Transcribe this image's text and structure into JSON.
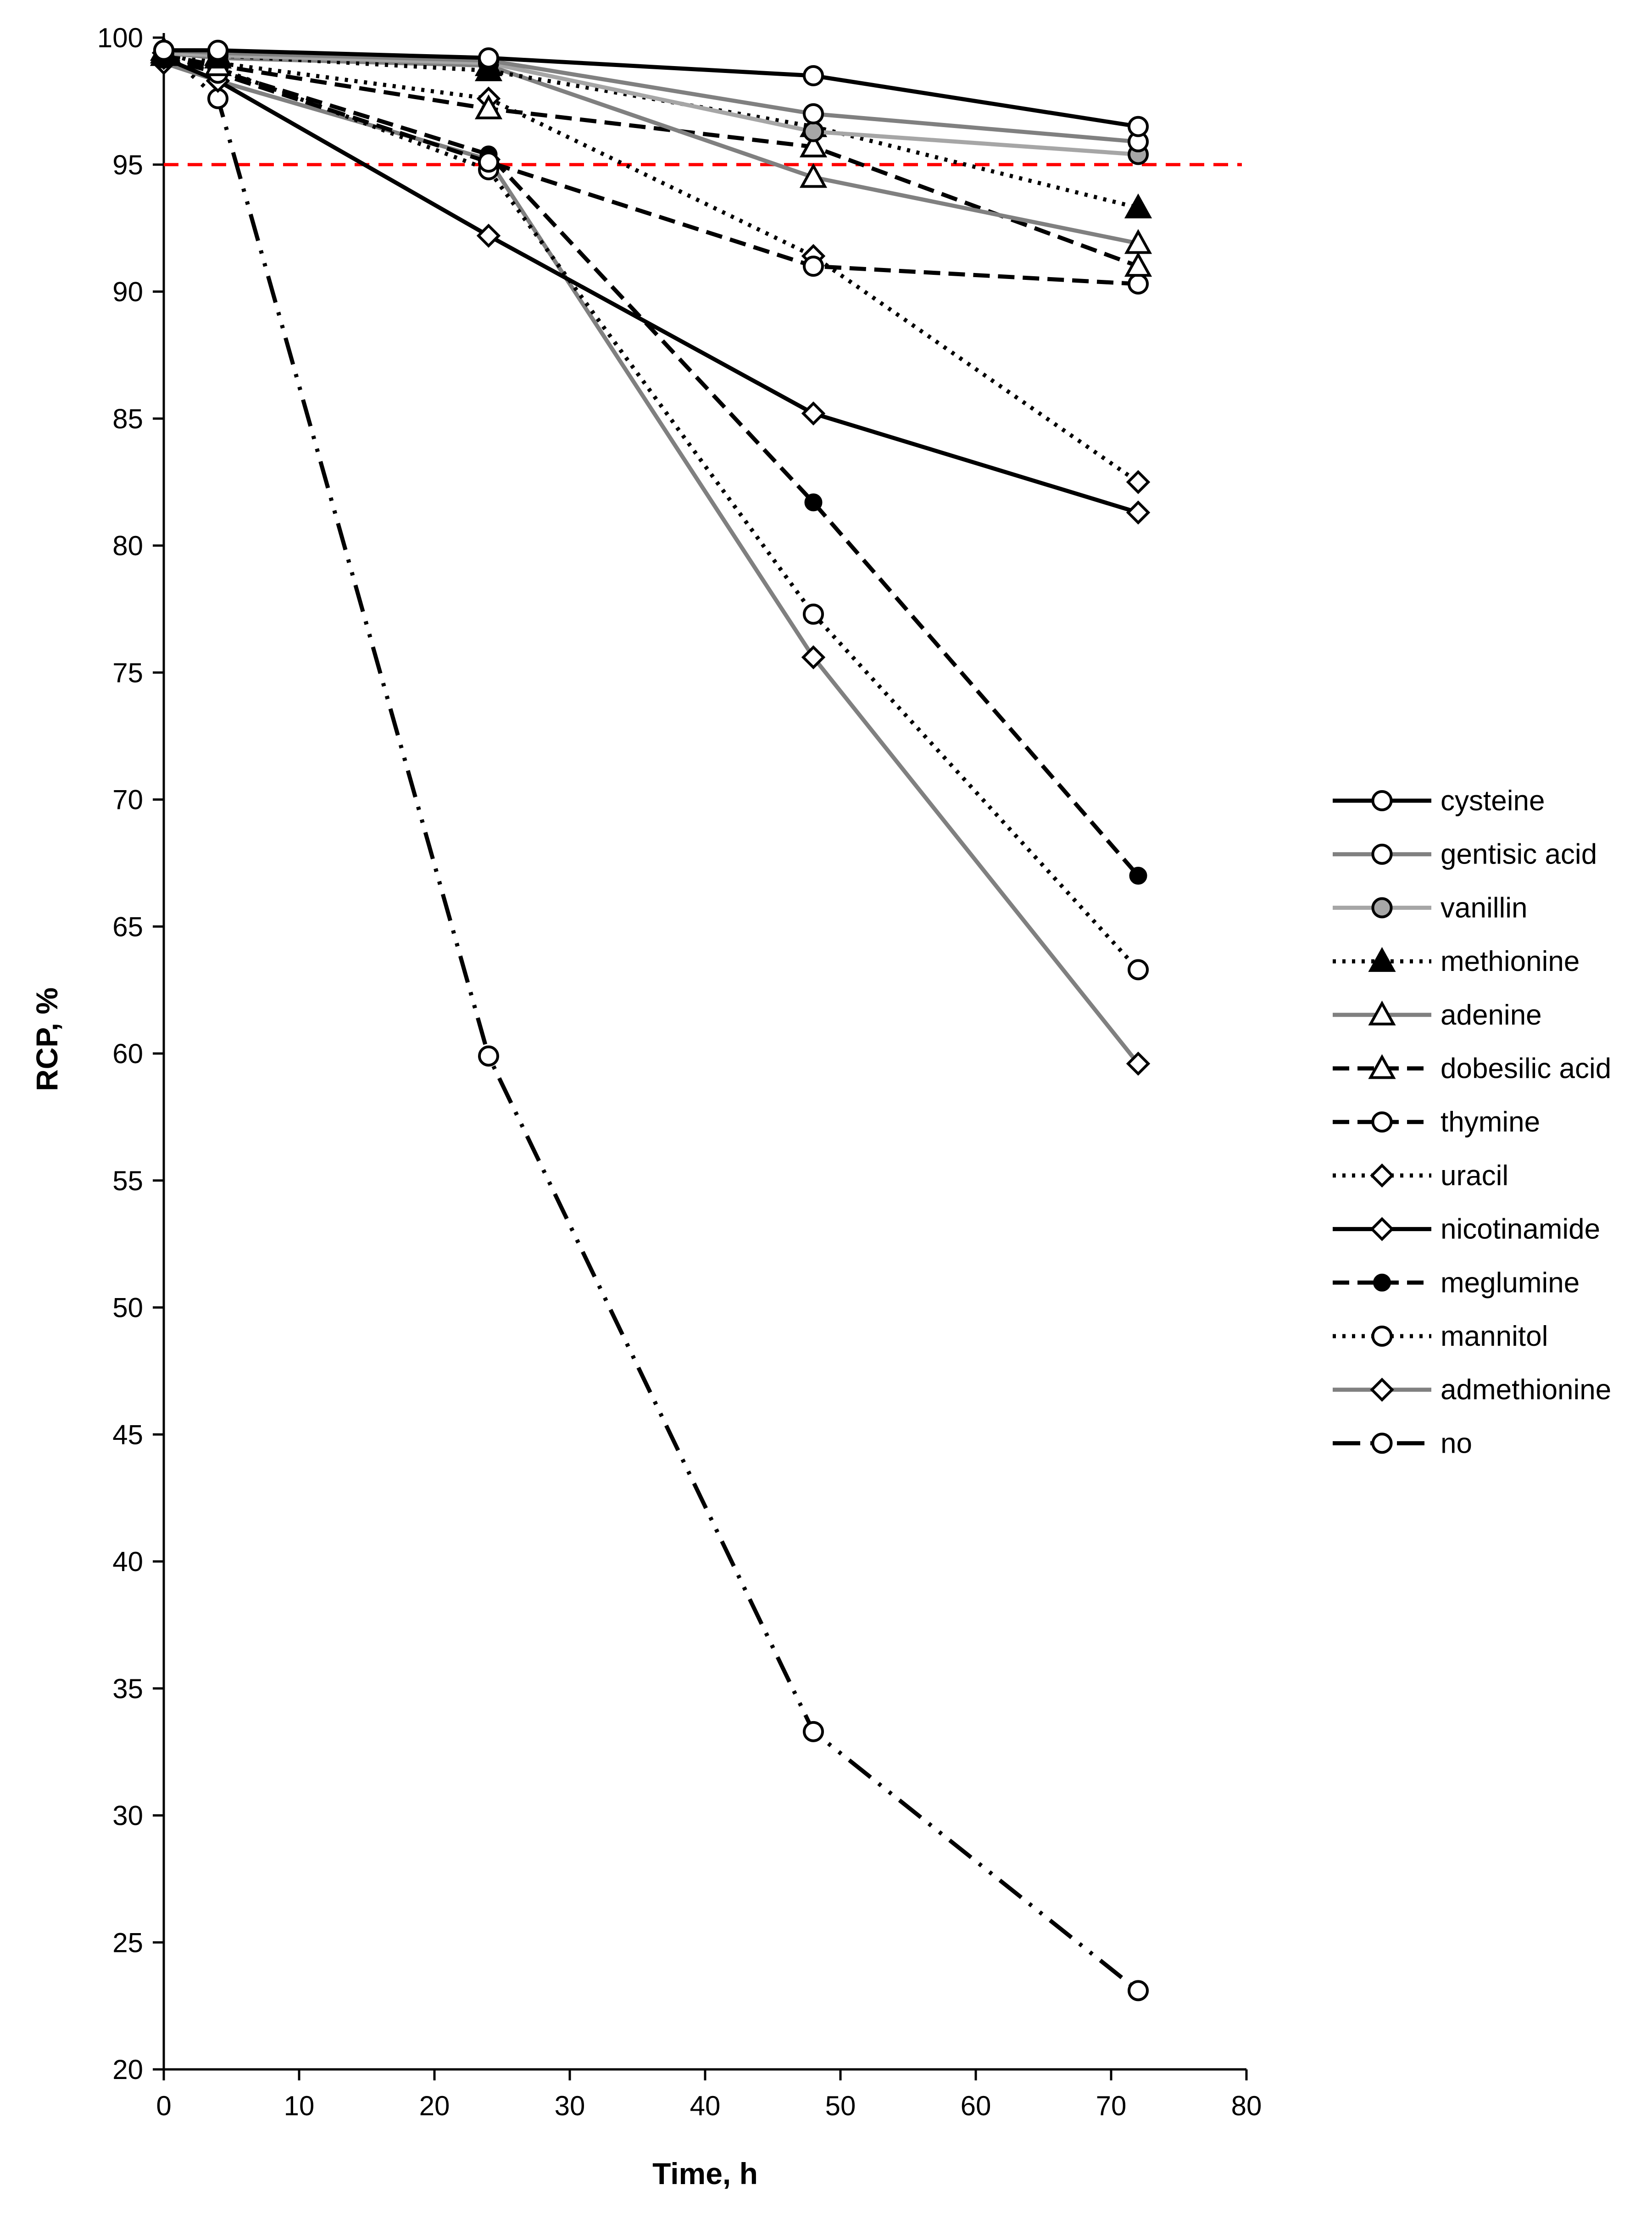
{
  "chart_data": {
    "type": "line",
    "title": "",
    "xlabel": "Time, h",
    "ylabel": "RCP, %",
    "xlim": [
      0,
      80
    ],
    "ylim": [
      20,
      100
    ],
    "xticks": [
      0,
      10,
      20,
      30,
      40,
      50,
      60,
      70,
      80
    ],
    "yticks": [
      20,
      25,
      30,
      35,
      40,
      45,
      50,
      55,
      60,
      65,
      70,
      75,
      80,
      85,
      90,
      95,
      100
    ],
    "grid": false,
    "legend_position": "right",
    "reference_line": {
      "y": 95,
      "color": "#ff0000",
      "style": "dashed"
    },
    "series": [
      {
        "name": "cysteine",
        "x": [
          0,
          4,
          24,
          48,
          72
        ],
        "y": [
          99.5,
          99.5,
          99.2,
          98.5,
          96.5
        ],
        "color": "#000000",
        "dash": "solid",
        "marker": "circle",
        "marker_fill": "#ffffff"
      },
      {
        "name": "gentisic acid",
        "x": [
          0,
          4,
          24,
          48,
          72
        ],
        "y": [
          99.5,
          99.4,
          99.1,
          97.0,
          95.9
        ],
        "color": "#808080",
        "dash": "solid",
        "marker": "circle",
        "marker_fill": "#ffffff"
      },
      {
        "name": "vanillin",
        "x": [
          0,
          4,
          24,
          48,
          72
        ],
        "y": [
          99.4,
          99.3,
          99.0,
          96.3,
          95.4
        ],
        "color": "#a6a6a6",
        "dash": "solid",
        "marker": "circle",
        "marker_fill": "#a6a6a6"
      },
      {
        "name": "methionine",
        "x": [
          0,
          4,
          24,
          48,
          72
        ],
        "y": [
          99.5,
          99.3,
          98.7,
          96.5,
          93.3
        ],
        "color": "#000000",
        "dash": "dotted",
        "marker": "triangle",
        "marker_fill": "#000000"
      },
      {
        "name": "adenine",
        "x": [
          0,
          4,
          24,
          48,
          72
        ],
        "y": [
          99.4,
          99.2,
          98.9,
          94.5,
          91.9
        ],
        "color": "#808080",
        "dash": "solid",
        "marker": "triangle",
        "marker_fill": "#ffffff"
      },
      {
        "name": "dobesilic acid",
        "x": [
          0,
          4,
          24,
          48,
          72
        ],
        "y": [
          99.3,
          98.9,
          97.2,
          95.7,
          91.0
        ],
        "color": "#000000",
        "dash": "dashed",
        "marker": "triangle",
        "marker_fill": "#ffffff"
      },
      {
        "name": "thymine",
        "x": [
          0,
          4,
          24,
          48,
          72
        ],
        "y": [
          99.2,
          98.6,
          95.1,
          91.0,
          90.3
        ],
        "color": "#000000",
        "dash": "dashed",
        "marker": "circle",
        "marker_fill": "#ffffff"
      },
      {
        "name": "uracil",
        "x": [
          0,
          4,
          24,
          48,
          72
        ],
        "y": [
          99.4,
          99.0,
          97.6,
          91.4,
          82.5
        ],
        "color": "#000000",
        "dash": "dotted",
        "marker": "diamond",
        "marker_fill": "#ffffff"
      },
      {
        "name": "nicotinamide",
        "x": [
          0,
          4,
          24,
          48,
          72
        ],
        "y": [
          99.2,
          98.3,
          92.2,
          85.2,
          81.3
        ],
        "color": "#000000",
        "dash": "solid",
        "marker": "diamond",
        "marker_fill": "#ffffff"
      },
      {
        "name": "meglumine",
        "x": [
          0,
          4,
          24,
          48,
          72
        ],
        "y": [
          99.3,
          98.7,
          95.4,
          81.7,
          67.0
        ],
        "color": "#000000",
        "dash": "dashed",
        "marker": "dot",
        "marker_fill": "#000000"
      },
      {
        "name": "mannitol",
        "x": [
          0,
          4,
          24,
          48,
          72
        ],
        "y": [
          99.4,
          98.8,
          94.8,
          77.3,
          63.3
        ],
        "color": "#000000",
        "dash": "dotted",
        "marker": "circle",
        "marker_fill": "#ffffff"
      },
      {
        "name": "admethionine",
        "x": [
          0,
          4,
          24,
          48,
          72
        ],
        "y": [
          99.0,
          98.3,
          95.2,
          75.6,
          59.6
        ],
        "color": "#808080",
        "dash": "solid",
        "marker": "diamond",
        "marker_fill": "#ffffff"
      },
      {
        "name": "no",
        "x": [
          0,
          4,
          24,
          48,
          72
        ],
        "y": [
          99.5,
          97.6,
          59.9,
          33.3,
          23.1
        ],
        "color": "#000000",
        "dash": "dashdotdot",
        "marker": "circle",
        "marker_fill": "#ffffff"
      }
    ]
  }
}
